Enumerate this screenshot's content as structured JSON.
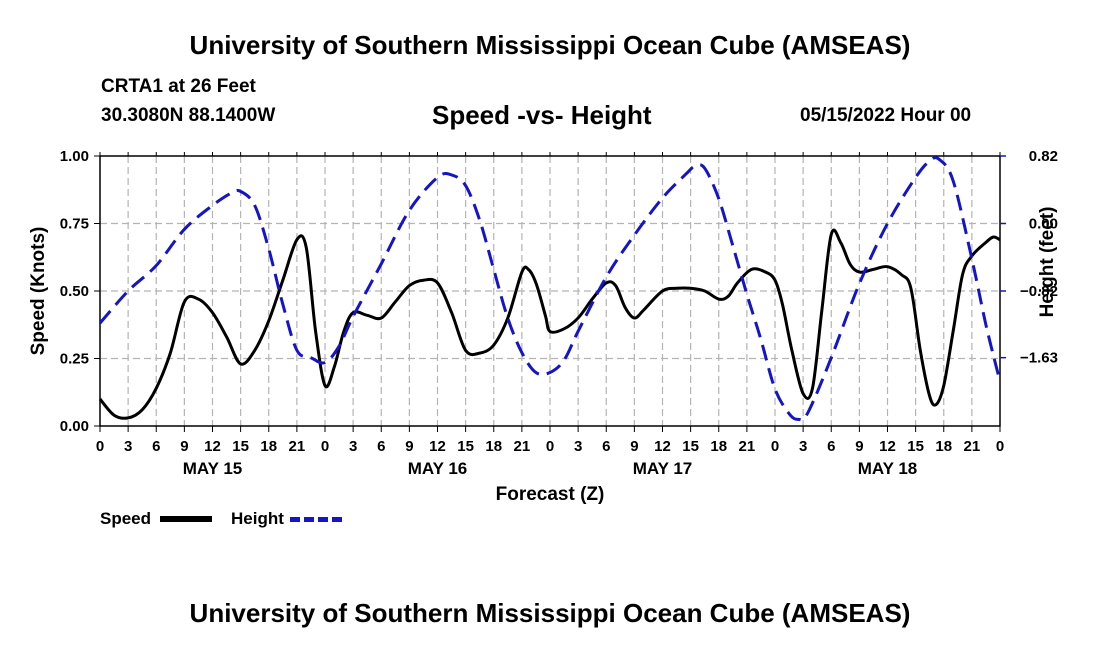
{
  "header": {
    "title": "University of Southern Mississippi Ocean Cube (AMSEAS)",
    "station": "CRTA1 at 26 Feet",
    "coordinates": "30.3080N  88.1400W",
    "date": "05/15/2022 Hour 00"
  },
  "footer": {
    "title": "University of Southern Mississippi Ocean Cube (AMSEAS)"
  },
  "legend": {
    "speed_label": "Speed",
    "height_label": "Height"
  },
  "colors": {
    "speed": "#000000",
    "height": "#1414c8",
    "grid": "#b4b4b4"
  },
  "chart_data": {
    "type": "line",
    "title": "Speed -vs- Height",
    "xlabel": "Forecast (Z)",
    "ylabel": "Speed (Knots)",
    "y2label": "Height (feet)",
    "x_hours_range": [
      0,
      96
    ],
    "x_tick_step_hours": 3,
    "x_tick_labels": [
      "0",
      "3",
      "6",
      "9",
      "12",
      "15",
      "18",
      "21",
      "0",
      "3",
      "6",
      "9",
      "12",
      "15",
      "18",
      "21",
      "0",
      "3",
      "6",
      "9",
      "12",
      "15",
      "18",
      "21",
      "0",
      "3",
      "6",
      "9",
      "12",
      "15",
      "18",
      "21",
      "0"
    ],
    "day_labels": [
      {
        "label": "MAY 15",
        "hour": 12
      },
      {
        "label": "MAY 16",
        "hour": 36
      },
      {
        "label": "MAY 17",
        "hour": 60
      },
      {
        "label": "MAY 18",
        "hour": 84
      }
    ],
    "ylim": [
      0,
      1.0
    ],
    "y_ticks": [
      0.0,
      0.25,
      0.5,
      0.75,
      1.0
    ],
    "y_tick_labels": [
      "0.00",
      "0.25",
      "0.50",
      "0.75",
      "1.00"
    ],
    "y2_ticks": [
      0.82,
      0.0,
      -0.82,
      -1.63
    ],
    "y2_tick_labels": [
      "0.82",
      "0.00",
      "−0.82",
      "−1.63"
    ],
    "y2lim": [
      -2.46,
      0.82
    ],
    "series": [
      {
        "name": "Speed",
        "axis": "left",
        "style": "solid",
        "points": [
          [
            0,
            0.1
          ],
          [
            1.5,
            0.04
          ],
          [
            3,
            0.03
          ],
          [
            4.5,
            0.06
          ],
          [
            6,
            0.14
          ],
          [
            7.5,
            0.27
          ],
          [
            9,
            0.46
          ],
          [
            10.5,
            0.47
          ],
          [
            12,
            0.42
          ],
          [
            13.5,
            0.33
          ],
          [
            15,
            0.23
          ],
          [
            16.5,
            0.28
          ],
          [
            18,
            0.39
          ],
          [
            19.5,
            0.54
          ],
          [
            21,
            0.69
          ],
          [
            22,
            0.66
          ],
          [
            23,
            0.35
          ],
          [
            24,
            0.15
          ],
          [
            25,
            0.22
          ],
          [
            26,
            0.35
          ],
          [
            27,
            0.42
          ],
          [
            28.5,
            0.41
          ],
          [
            30,
            0.4
          ],
          [
            31.5,
            0.46
          ],
          [
            33,
            0.52
          ],
          [
            34.5,
            0.54
          ],
          [
            36,
            0.53
          ],
          [
            37.5,
            0.42
          ],
          [
            39,
            0.28
          ],
          [
            40.5,
            0.27
          ],
          [
            42,
            0.3
          ],
          [
            43.5,
            0.4
          ],
          [
            45,
            0.57
          ],
          [
            45.7,
            0.58
          ],
          [
            46.5,
            0.53
          ],
          [
            47.5,
            0.41
          ],
          [
            48,
            0.35
          ],
          [
            49.5,
            0.36
          ],
          [
            51,
            0.4
          ],
          [
            52.5,
            0.47
          ],
          [
            54,
            0.53
          ],
          [
            55,
            0.52
          ],
          [
            56,
            0.44
          ],
          [
            57,
            0.4
          ],
          [
            58,
            0.43
          ],
          [
            60,
            0.5
          ],
          [
            61.5,
            0.51
          ],
          [
            63,
            0.51
          ],
          [
            64.5,
            0.5
          ],
          [
            66,
            0.47
          ],
          [
            67,
            0.48
          ],
          [
            68,
            0.53
          ],
          [
            69.5,
            0.58
          ],
          [
            71,
            0.57
          ],
          [
            72,
            0.54
          ],
          [
            72.8,
            0.45
          ],
          [
            73.8,
            0.28
          ],
          [
            75,
            0.12
          ],
          [
            76,
            0.14
          ],
          [
            77,
            0.43
          ],
          [
            78,
            0.71
          ],
          [
            79,
            0.68
          ],
          [
            80,
            0.6
          ],
          [
            81,
            0.57
          ],
          [
            82.5,
            0.58
          ],
          [
            84,
            0.59
          ],
          [
            85.5,
            0.56
          ],
          [
            86.5,
            0.51
          ],
          [
            87.5,
            0.28
          ],
          [
            88.5,
            0.11
          ],
          [
            89.2,
            0.08
          ],
          [
            90,
            0.15
          ],
          [
            91,
            0.35
          ],
          [
            92,
            0.56
          ],
          [
            93,
            0.63
          ],
          [
            94.5,
            0.68
          ],
          [
            95.3,
            0.7
          ],
          [
            96,
            0.69
          ]
        ]
      },
      {
        "name": "Height",
        "axis": "right",
        "style": "dashed",
        "points": [
          [
            0,
            -1.21
          ],
          [
            3,
            -0.82
          ],
          [
            6,
            -0.51
          ],
          [
            9,
            -0.07
          ],
          [
            12,
            0.22
          ],
          [
            14,
            0.37
          ],
          [
            15,
            0.39
          ],
          [
            16.5,
            0.22
          ],
          [
            18,
            -0.31
          ],
          [
            19.5,
            -0.98
          ],
          [
            21,
            -1.54
          ],
          [
            22.5,
            -1.63
          ],
          [
            24,
            -1.69
          ],
          [
            25.5,
            -1.49
          ],
          [
            27,
            -1.13
          ],
          [
            30,
            -0.49
          ],
          [
            33,
            0.16
          ],
          [
            36,
            0.56
          ],
          [
            37.5,
            0.59
          ],
          [
            39,
            0.46
          ],
          [
            40.5,
            0.04
          ],
          [
            42,
            -0.56
          ],
          [
            43.5,
            -1.15
          ],
          [
            45,
            -1.57
          ],
          [
            46.5,
            -1.81
          ],
          [
            48,
            -1.81
          ],
          [
            49.5,
            -1.66
          ],
          [
            51,
            -1.31
          ],
          [
            54,
            -0.65
          ],
          [
            57,
            -0.14
          ],
          [
            60,
            0.31
          ],
          [
            62.5,
            0.6
          ],
          [
            63.5,
            0.7
          ],
          [
            64.5,
            0.67
          ],
          [
            66,
            0.3
          ],
          [
            67.5,
            -0.27
          ],
          [
            69,
            -0.86
          ],
          [
            70.5,
            -1.41
          ],
          [
            72,
            -2.01
          ],
          [
            73.5,
            -2.31
          ],
          [
            74.5,
            -2.38
          ],
          [
            75.5,
            -2.3
          ],
          [
            78,
            -1.63
          ],
          [
            81,
            -0.73
          ],
          [
            84,
            0.0
          ],
          [
            87,
            0.56
          ],
          [
            88.5,
            0.76
          ],
          [
            89.5,
            0.78
          ],
          [
            91,
            0.52
          ],
          [
            93,
            -0.43
          ],
          [
            94.5,
            -1.23
          ],
          [
            96,
            -1.92
          ]
        ]
      }
    ]
  }
}
